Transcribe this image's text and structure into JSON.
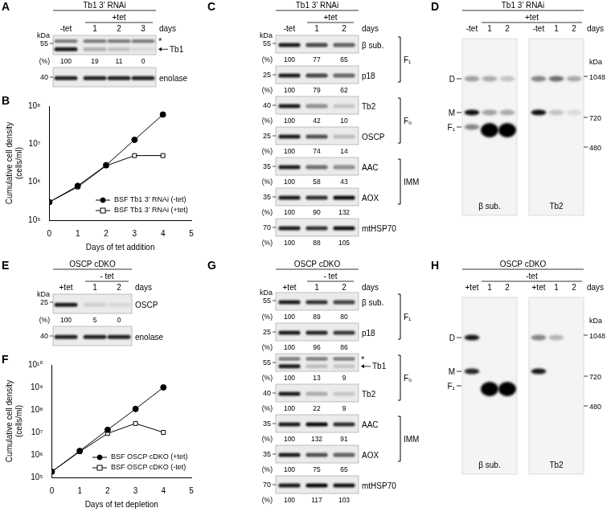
{
  "panels": {
    "A": {
      "letter": "A",
      "header": "Tb1 3’ RNAi",
      "condition": "+tet",
      "lanes": [
        "-tet",
        "1",
        "2",
        "3"
      ],
      "unit": "days",
      "kda": "kDa",
      "percent_label": "(%)",
      "blots": [
        {
          "protein": "Tb1",
          "marker": 55,
          "star": "*",
          "arrow": true,
          "percent": [
            100,
            19,
            11,
            0
          ]
        },
        {
          "protein": "enolase",
          "marker": 40
        }
      ]
    },
    "C": {
      "letter": "C",
      "header": "Tb1 3’ RNAi",
      "condition": "+tet",
      "lanes": [
        "-tet",
        "1",
        "2"
      ],
      "unit": "days",
      "kda": "kDa",
      "percent_label": "(%)",
      "blots": [
        {
          "protein": "β sub.",
          "marker": 55,
          "percent": [
            100,
            77,
            65
          ],
          "group": "F₁"
        },
        {
          "protein": "p18",
          "marker": 25,
          "percent": [
            100,
            79,
            62
          ],
          "group": "F₁"
        },
        {
          "protein": "Tb2",
          "marker": 40,
          "percent": [
            100,
            42,
            10
          ],
          "group": "F₀"
        },
        {
          "protein": "OSCP",
          "marker": 25,
          "percent": [
            100,
            74,
            14
          ],
          "group": "F₀"
        },
        {
          "protein": "AAC",
          "marker": 35,
          "percent": [
            100,
            58,
            43
          ],
          "group": "IMM"
        },
        {
          "protein": "AOX",
          "marker": 35,
          "percent": [
            100,
            90,
            132
          ],
          "group": "IMM"
        },
        {
          "protein": "mtHSP70",
          "marker": 70,
          "percent": [
            100,
            88,
            105
          ]
        }
      ]
    },
    "D": {
      "letter": "D",
      "header": "Tb1 3’ RNAi",
      "condition": "+tet",
      "lanes": [
        "-tet",
        "1",
        "2"
      ],
      "unit": "days",
      "kda": "kDa",
      "gels": [
        "β sub.",
        "Tb2"
      ],
      "complexes": [
        "D",
        "M",
        "F₁"
      ],
      "markers": [
        1048,
        720,
        480
      ]
    },
    "E": {
      "letter": "E",
      "header": "OSCP cDKO",
      "condition": "- tet",
      "lanes": [
        "+tet",
        "1",
        "2"
      ],
      "unit": "days",
      "kda": "kDa",
      "percent_label": "(%)",
      "blots": [
        {
          "protein": "OSCP",
          "marker": 25,
          "percent": [
            100,
            5,
            0
          ]
        },
        {
          "protein": "enolase",
          "marker": 40
        }
      ]
    },
    "G": {
      "letter": "G",
      "header": "OSCP cDKO",
      "condition": "- tet",
      "lanes": [
        "+tet",
        "1",
        "2"
      ],
      "unit": "days",
      "kda": "kDa",
      "percent_label": "(%)",
      "blots": [
        {
          "protein": "β sub.",
          "marker": 55,
          "percent": [
            100,
            89,
            80
          ],
          "group": "F₁"
        },
        {
          "protein": "p18",
          "marker": 25,
          "percent": [
            100,
            96,
            86
          ],
          "group": "F₁"
        },
        {
          "protein": "Tb1",
          "marker": 55,
          "star": "*",
          "arrow": true,
          "percent": [
            100,
            13,
            9
          ],
          "group": "F₀"
        },
        {
          "protein": "Tb2",
          "marker": 40,
          "percent": [
            100,
            22,
            9
          ],
          "group": "F₀"
        },
        {
          "protein": "AAC",
          "marker": 35,
          "percent": [
            100,
            132,
            91
          ],
          "group": "IMM"
        },
        {
          "protein": "AOX",
          "marker": 35,
          "percent": [
            100,
            75,
            65
          ],
          "group": "IMM"
        },
        {
          "protein": "mtHSP70",
          "marker": 70,
          "percent": [
            100,
            117,
            103
          ]
        }
      ]
    },
    "H": {
      "letter": "H",
      "header": "OSCP cDKO",
      "condition": "-tet",
      "lanes": [
        "+tet",
        "1",
        "2"
      ],
      "unit": "days",
      "kda": "kDa",
      "gels": [
        "β sub.",
        "Tb2"
      ],
      "complexes": [
        "D",
        "M",
        "F₁"
      ],
      "markers": [
        1048,
        720,
        480
      ]
    }
  },
  "chart_data": [
    {
      "panel": "B",
      "type": "line",
      "x_label": "Days of tet addition",
      "y_label": [
        "Cumulative cell density",
        "(cells/ml)"
      ],
      "x": [
        0,
        1,
        2,
        3,
        4
      ],
      "series": [
        {
          "name": "BSF Tb1 3’ RNAi (-tet)",
          "color": "#000000",
          "marker": "circle",
          "values": [
            300000,
            800000,
            2800000,
            13000000,
            60000000
          ]
        },
        {
          "name": "BSF Tb1 3’ RNAi (+tet)",
          "color": "#000000",
          "marker": "square_open",
          "values": [
            300000,
            750000,
            2700000,
            5000000,
            5000000
          ]
        }
      ],
      "xlim": [
        0,
        5
      ],
      "xticks": [
        0,
        1,
        2,
        3,
        4,
        5
      ],
      "log": "y",
      "ylim": [
        100000,
        100000000
      ],
      "yticks": [
        {
          "value": 100000,
          "label": "10⁵"
        },
        {
          "value": 1000000,
          "label": "10⁶"
        },
        {
          "value": 10000000,
          "label": "10⁷"
        },
        {
          "value": 100000000,
          "label": "10⁸"
        }
      ],
      "legend": "lower right",
      "grid": false
    },
    {
      "panel": "F",
      "type": "line",
      "x_label": "Days of tet depletion",
      "y_label": [
        "Cumulative cell density",
        "(cells/ml)"
      ],
      "x": [
        0,
        1,
        2,
        3,
        4
      ],
      "series": [
        {
          "name": "BSF OSCP cDKO (+tet)",
          "color": "#000000",
          "marker": "circle",
          "values": [
            180000,
            1500000,
            13000000,
            110000000,
            1000000000
          ]
        },
        {
          "name": "BSF OSCP cDKO (-tet)",
          "color": "#000000",
          "marker": "square_open",
          "values": [
            180000,
            1400000,
            9000000,
            25000000,
            10000000
          ]
        }
      ],
      "xlim": [
        0,
        5
      ],
      "xticks": [
        0,
        1,
        2,
        3,
        4,
        5
      ],
      "log": "y",
      "ylim": [
        100000,
        10000000000
      ],
      "yticks": [
        {
          "value": 100000,
          "label": "10⁵"
        },
        {
          "value": 1000000,
          "label": "10⁶"
        },
        {
          "value": 10000000,
          "label": "10⁷"
        },
        {
          "value": 100000000,
          "label": "10⁸"
        },
        {
          "value": 1000000000,
          "label": "10⁹"
        },
        {
          "value": 10000000000,
          "label": "10¹⁰"
        }
      ],
      "legend": "lower right",
      "grid": false
    }
  ]
}
